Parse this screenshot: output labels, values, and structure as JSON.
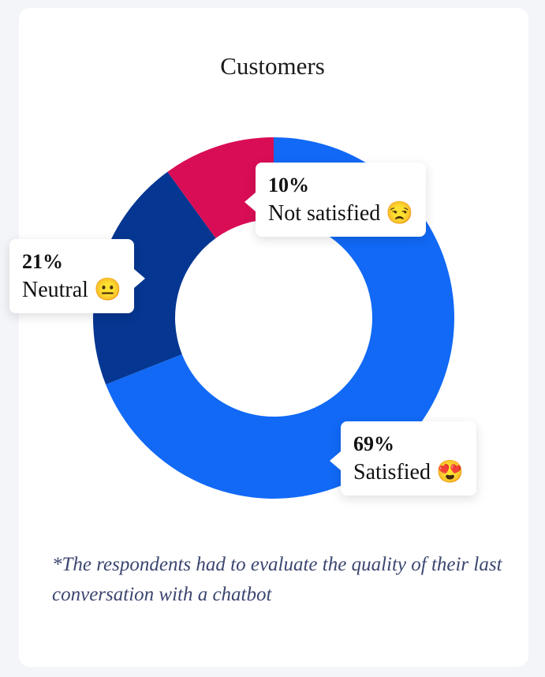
{
  "chart_data": {
    "type": "pie",
    "variant": "donut",
    "title": "Customers",
    "slices": [
      {
        "label": "Satisfied",
        "value": 69,
        "pct_label": "69%",
        "emoji": "😍",
        "color": "#1169f6"
      },
      {
        "label": "Neutral",
        "value": 21,
        "pct_label": "21%",
        "emoji": "😐",
        "color": "#053691"
      },
      {
        "label": "Not satisfied",
        "value": 10,
        "pct_label": "10%",
        "emoji": "😒",
        "color": "#d90d55"
      }
    ],
    "start_angle": "12 o'clock",
    "direction": "clockwise",
    "footnote": "*The respondents had to evaluate the quality of their last conversation with a chatbot"
  }
}
